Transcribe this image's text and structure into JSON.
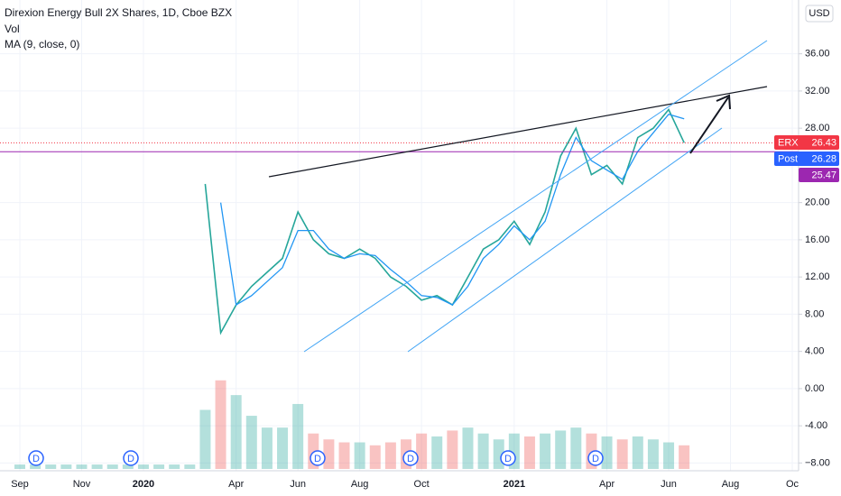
{
  "chart_data": {
    "type": "line",
    "title": "Direxion Energy Bull 2X Shares, 1D, Cboe BZX",
    "indicators": [
      "Vol",
      "MA (9, close, 0)"
    ],
    "currency": "USD",
    "categories": [
      "Sep",
      null,
      null,
      null,
      "Nov",
      null,
      null,
      null,
      "2020",
      null,
      null,
      null,
      null,
      null,
      "Apr",
      null,
      null,
      null,
      "Jun",
      null,
      null,
      null,
      "Aug",
      null,
      null,
      null,
      "Oct",
      null,
      null,
      null,
      null,
      null,
      "2021",
      null,
      null,
      null,
      null,
      null,
      "Apr",
      null,
      null,
      null,
      "Jun",
      null,
      null,
      null,
      "Aug",
      null,
      null,
      null,
      "Oc"
    ],
    "series": [
      {
        "name": "ERX",
        "color": "#26a69a",
        "values": [
          null,
          null,
          null,
          null,
          null,
          null,
          null,
          null,
          null,
          null,
          null,
          null,
          22,
          6,
          9,
          11,
          12.5,
          14,
          19,
          16,
          14.5,
          14,
          15,
          14,
          12,
          11,
          9.5,
          10,
          9,
          12,
          15,
          16,
          18,
          15.5,
          19,
          25,
          28,
          23,
          24,
          22,
          27,
          28,
          30,
          26.43,
          null,
          null,
          null,
          null,
          null,
          null,
          null
        ]
      },
      {
        "name": "MA",
        "color": "#2196f3",
        "values": [
          null,
          null,
          null,
          null,
          null,
          null,
          null,
          null,
          null,
          null,
          null,
          null,
          null,
          20,
          9,
          10,
          11.5,
          13,
          17,
          17,
          15,
          14,
          14.5,
          14.3,
          12.8,
          11.5,
          10,
          9.8,
          9,
          11,
          14,
          15.5,
          17.5,
          16,
          18,
          23,
          27,
          24.5,
          23.5,
          22.5,
          25.5,
          27.5,
          29.5,
          29,
          null,
          null,
          null,
          null,
          null,
          null,
          null
        ]
      }
    ],
    "volume": {
      "up_color": "#26a69a",
      "down_color": "#ef5350",
      "ylim": [
        0,
        40
      ],
      "values": [
        1.5,
        1.5,
        1.5,
        1.5,
        1.5,
        1.5,
        1.5,
        1.5,
        1.5,
        1.5,
        1.5,
        1.5,
        20,
        30,
        25,
        18,
        14,
        14,
        22,
        12,
        10,
        9,
        9,
        8,
        9,
        10,
        12,
        11,
        13,
        14,
        12,
        10,
        12,
        11,
        12,
        13,
        14,
        12,
        11,
        10,
        11,
        10,
        9,
        8,
        null,
        null,
        null,
        null,
        null,
        null,
        null
      ]
    },
    "ylim": [
      -8.64,
      41.3
    ],
    "yticks": [
      {
        "value": 36,
        "label": "36.00"
      },
      {
        "value": 32,
        "label": "32.00"
      },
      {
        "value": 28,
        "label": "28.00"
      },
      {
        "value": 20,
        "label": "20.00"
      },
      {
        "value": 16,
        "label": "16.00"
      },
      {
        "value": 12,
        "label": "12.00"
      },
      {
        "value": 8,
        "label": "8.00"
      },
      {
        "value": 4,
        "label": "4.00"
      },
      {
        "value": 0,
        "label": "0.00"
      },
      {
        "value": -4,
        "label": "-4.00"
      },
      {
        "value": -8,
        "label": "−8.00"
      }
    ],
    "grid": true,
    "price_labels": [
      {
        "label": "ERX",
        "value": 26.43,
        "color": "#f23645",
        "line": "dotted"
      },
      {
        "label": "Post",
        "value": 26.28,
        "color": "#2962ff",
        "line": "none"
      },
      {
        "value": 25.47,
        "color": "#9c27b0",
        "line": "solid"
      }
    ],
    "dividend_marker": "D"
  }
}
